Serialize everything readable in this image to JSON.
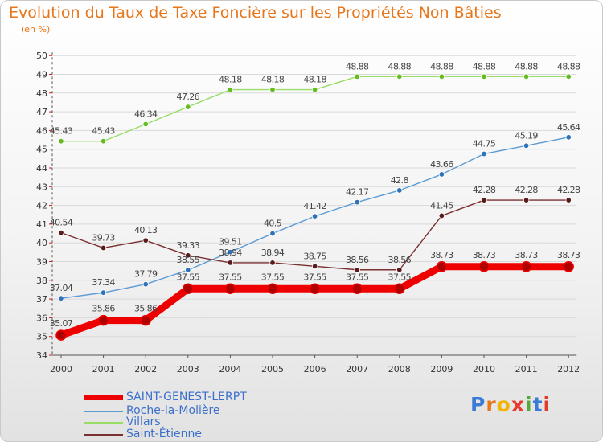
{
  "header": {
    "title": "Evolution du Taux de Taxe Foncière sur les Propriétés Non Bâties",
    "unit": "(en %)"
  },
  "logo": {
    "text": "Proxiti",
    "letter_colors": [
      "#3a7bd5",
      "#e8761a",
      "#f2b400",
      "#e53a2a",
      "#56a83b",
      "#3a7bd5",
      "#e53a2a"
    ]
  },
  "colors": {
    "title": "#e8761a",
    "legend_text": "#3c6fc9",
    "axis": "#333333",
    "grid": "#d9d9d9"
  },
  "chart_data": {
    "type": "line",
    "title": "Evolution du Taux de Taxe Foncière sur les Propriétés Non Bâties",
    "ylabel": "(en %)",
    "xlabel": "",
    "categories": [
      "2000",
      "2001",
      "2002",
      "2003",
      "2004",
      "2005",
      "2006",
      "2007",
      "2008",
      "2009",
      "2010",
      "2011",
      "2012"
    ],
    "ylim": [
      34,
      50
    ],
    "yticks": [
      34,
      35,
      36,
      37,
      38,
      39,
      40,
      41,
      42,
      43,
      44,
      45,
      46,
      47,
      48,
      49,
      50
    ],
    "grid": "horizontal",
    "legend_position": "bottom-left",
    "series": [
      {
        "name": "SAINT-GENEST-LERPT",
        "color": "#ee0000",
        "marker_color": "#b00000",
        "style": "thick",
        "values": [
          35.07,
          35.86,
          35.86,
          37.55,
          37.55,
          37.55,
          37.55,
          37.55,
          37.55,
          38.73,
          38.73,
          38.73,
          38.73
        ],
        "labels": [
          "35.07",
          "35.86",
          "35.86",
          "37.55",
          "37.55",
          "37.55",
          "37.55",
          "37.55",
          "37.55",
          "38.73",
          "38.73",
          "38.73",
          "38.73"
        ]
      },
      {
        "name": "Roche-la-Molière",
        "color": "#5b9bd5",
        "marker_color": "#2f72b8",
        "style": "thin",
        "values": [
          37.04,
          37.34,
          37.79,
          38.55,
          39.51,
          40.5,
          41.42,
          42.17,
          42.8,
          43.66,
          44.75,
          45.19,
          45.64
        ],
        "labels": [
          "37.04",
          "37.34",
          "37.79",
          "38.55",
          "39.51",
          "40.5",
          "41.42",
          "42.17",
          "42.8",
          "43.66",
          "44.75",
          "45.19",
          "45.64"
        ]
      },
      {
        "name": "Villars",
        "color": "#99dd66",
        "marker_color": "#66bb22",
        "style": "thin",
        "values": [
          45.43,
          45.43,
          46.34,
          47.26,
          48.18,
          48.18,
          48.18,
          48.88,
          48.88,
          48.88,
          48.88,
          48.88,
          48.88
        ],
        "labels": [
          "45.43",
          "45.43",
          "46.34",
          "47.26",
          "48.18",
          "48.18",
          "48.18",
          "48.88",
          "48.88",
          "48.88",
          "48.88",
          "48.88",
          "48.88"
        ]
      },
      {
        "name": "Saint-Étienne",
        "color": "#7a3030",
        "marker_color": "#5a1a1a",
        "style": "thin",
        "values": [
          40.54,
          39.73,
          40.13,
          39.33,
          38.94,
          38.94,
          38.75,
          38.56,
          38.56,
          41.45,
          42.28,
          42.28,
          42.28
        ],
        "labels": [
          "40.54",
          "39.73",
          "40.13",
          "39.33",
          "38.94",
          "38.94",
          "38.75",
          "38.56",
          "38.56",
          "41.45",
          "42.28",
          "42.28",
          "42.28"
        ]
      }
    ]
  }
}
